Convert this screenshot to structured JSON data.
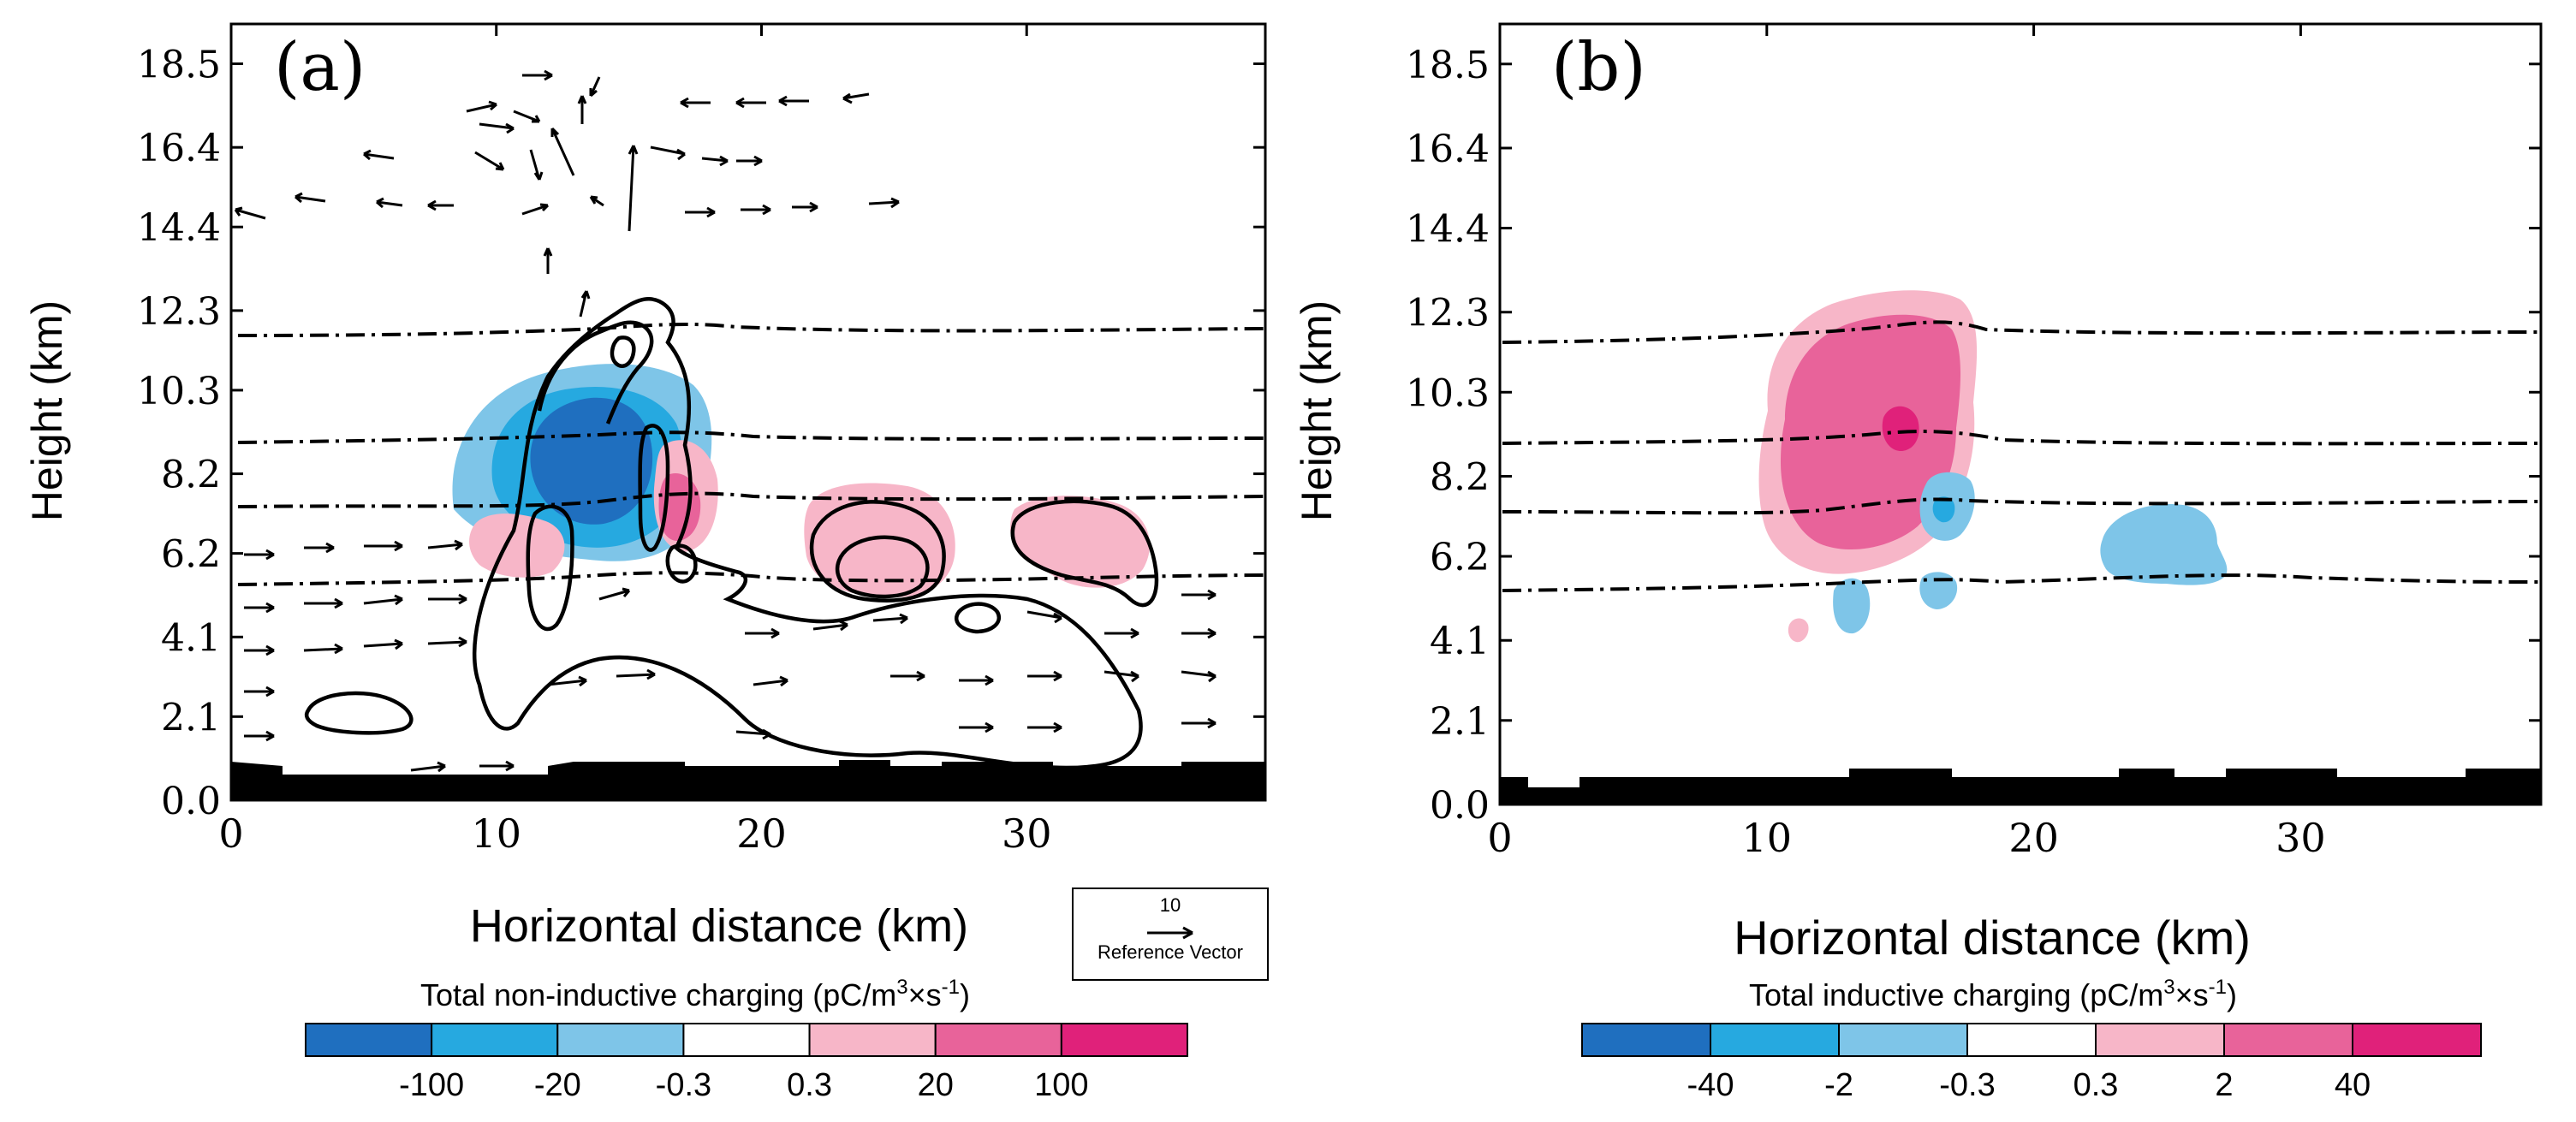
{
  "chart_data": [
    {
      "type": "contour",
      "panel_label": "(a)",
      "xlabel": "Horizontal distance (km)",
      "ylabel": "Height (km)",
      "xlim": [
        0,
        39
      ],
      "ylim": [
        0,
        19.5
      ],
      "x_ticks": [
        "0",
        "10",
        "20",
        "30"
      ],
      "x_tick_values": [
        0,
        10,
        20,
        30
      ],
      "y_ticks": [
        "0.0",
        "2.1",
        "4.1",
        "6.2",
        "8.2",
        "10.3",
        "12.3",
        "14.4",
        "16.4",
        "18.5"
      ],
      "y_tick_values": [
        0.0,
        2.1,
        4.1,
        6.2,
        8.2,
        10.3,
        12.3,
        14.4,
        16.4,
        18.5
      ],
      "colorbar": {
        "title": "Total non-inductive charging",
        "units": "(pC/m",
        "units_sup1": "3",
        "units_mid": "×s",
        "units_sup2": "-1",
        "units_end": ")",
        "labels": [
          "-100",
          "-20",
          "-0.3",
          "0.3",
          "20",
          "100"
        ],
        "colors": [
          "#1f6fbf",
          "#26a9e0",
          "#7ec5e8",
          "#ffffff",
          "#f7b6c8",
          "#e8639a",
          "#e0217a"
        ]
      },
      "reference_vector": {
        "value": "10",
        "label": "Reference Vector"
      },
      "isotherm_heights_km": [
        11.9,
        9.2,
        7.5,
        5.6
      ],
      "regions": [
        {
          "sign": "negative",
          "level": 2,
          "center": [
            12.6,
            9.2
          ],
          "extent": [
            8.6,
            17.8,
            7.2,
            11.0
          ]
        },
        {
          "sign": "negative",
          "level": 3,
          "center": [
            14.0,
            8.6
          ],
          "extent": [
            12.0,
            16.2,
            7.2,
            10.0
          ]
        },
        {
          "sign": "positive",
          "level": 2,
          "center": [
            17.0,
            8.0
          ],
          "extent": [
            16.2,
            17.8,
            7.0,
            9.2
          ]
        },
        {
          "sign": "positive",
          "level": 1,
          "center": [
            11.0,
            7.0
          ],
          "extent": [
            9.6,
            12.6,
            6.2,
            7.8
          ]
        },
        {
          "sign": "positive",
          "level": 1,
          "center": [
            24.6,
            7.1
          ],
          "extent": [
            22.0,
            27.2,
            5.6,
            8.4
          ]
        },
        {
          "sign": "positive",
          "level": 1,
          "center": [
            33.0,
            7.3
          ],
          "extent": [
            30.4,
            35.6,
            6.2,
            8.2
          ]
        }
      ]
    },
    {
      "type": "contour",
      "panel_label": "(b)",
      "xlabel": "Horizontal distance (km)",
      "ylabel": "Height (km)",
      "xlim": [
        0,
        39
      ],
      "ylim": [
        0,
        19.5
      ],
      "x_ticks": [
        "0",
        "10",
        "20",
        "30"
      ],
      "x_tick_values": [
        0,
        10,
        20,
        30
      ],
      "y_ticks": [
        "0.0",
        "2.1",
        "4.1",
        "6.2",
        "8.2",
        "10.3",
        "12.3",
        "14.4",
        "16.4",
        "18.5"
      ],
      "y_tick_values": [
        0.0,
        2.1,
        4.1,
        6.2,
        8.2,
        10.3,
        12.3,
        14.4,
        16.4,
        18.5
      ],
      "colorbar": {
        "title": "Total inductive charging",
        "units": "(pC/m",
        "units_sup1": "3",
        "units_mid": "×s",
        "units_sup2": "-1",
        "units_end": ")",
        "labels": [
          "-40",
          "-2",
          "-0.3",
          "0.3",
          "2",
          "40"
        ],
        "colors": [
          "#1f6fbf",
          "#26a9e0",
          "#7ec5e8",
          "#ffffff",
          "#f7b6c8",
          "#e8639a",
          "#e0217a"
        ]
      },
      "isotherm_heights_km": [
        11.8,
        9.1,
        7.4,
        5.6
      ],
      "regions": [
        {
          "sign": "positive",
          "level": 1,
          "center": [
            13.8,
            9.3
          ],
          "extent": [
            9.6,
            17.4,
            6.0,
            12.8
          ]
        },
        {
          "sign": "positive",
          "level": 2,
          "center": [
            13.8,
            9.2
          ],
          "extent": [
            10.4,
            16.8,
            6.6,
            12.0
          ]
        },
        {
          "sign": "positive",
          "level": 3,
          "center": [
            14.8,
            9.6
          ],
          "extent": [
            14.2,
            15.4,
            9.0,
            10.2
          ]
        },
        {
          "sign": "negative",
          "level": 1,
          "center": [
            16.6,
            7.4
          ],
          "extent": [
            15.8,
            17.6,
            6.4,
            8.4
          ]
        },
        {
          "sign": "negative",
          "level": 1,
          "center": [
            24.4,
            6.5
          ],
          "extent": [
            22.8,
            26.6,
            5.6,
            7.6
          ]
        },
        {
          "sign": "negative",
          "level": 1,
          "center": [
            13.0,
            5.2
          ],
          "extent": [
            12.4,
            13.6,
            4.4,
            6.0
          ]
        },
        {
          "sign": "negative",
          "level": 1,
          "center": [
            16.3,
            5.6
          ],
          "extent": [
            15.8,
            16.8,
            5.0,
            6.0
          ]
        }
      ]
    }
  ]
}
